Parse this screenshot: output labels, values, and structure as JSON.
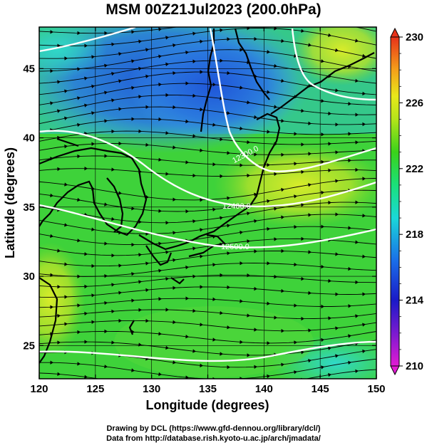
{
  "title": "MSM 00Z21Jul2023 (200.0hPa)",
  "xlabel": "Longitude (degrees)",
  "ylabel": "Latitude  (degrees)",
  "x_ticks": [
    "120",
    "125",
    "130",
    "135",
    "140",
    "145",
    "150"
  ],
  "y_ticks": [
    "25",
    "30",
    "35",
    "40",
    "45"
  ],
  "colorbar": {
    "ticks": [
      "210",
      "214",
      "218",
      "222",
      "226",
      "230"
    ],
    "min": 210,
    "max": 230
  },
  "contour_labels": [
    "12500.0",
    "12400.0",
    "12300.0"
  ],
  "credits": [
    "Drawing by DCL (https://www.gfd-dennou.org/library/dcl/)",
    "Data from http://database.rish.kyoto-u.ac.jp/arch/jmadata/"
  ]
}
